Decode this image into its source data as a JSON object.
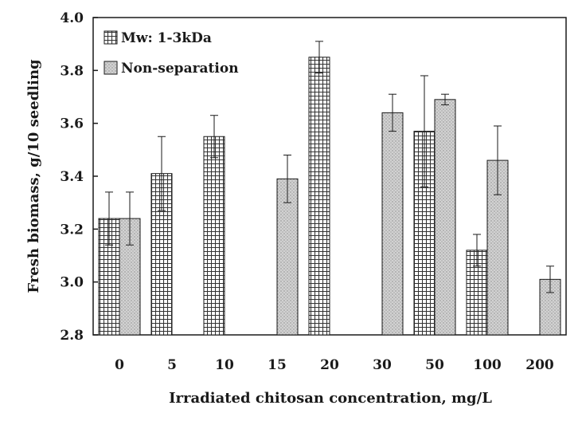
{
  "chart_data": {
    "type": "bar",
    "xlabel": "Irradiated chitosan concentration, mg/L",
    "ylabel": "Fresh biomass, g/10 seedling",
    "ylim": [
      2.8,
      4.0
    ],
    "yticks": [
      "2.8",
      "3.0",
      "3.2",
      "3.4",
      "3.6",
      "3.8",
      "4.0"
    ],
    "categories": [
      "0",
      "5",
      "10",
      "15",
      "20",
      "30",
      "50",
      "100",
      "200"
    ],
    "legend_position": "top-left",
    "grid": false,
    "series": [
      {
        "name": "Mw: 1-3kDa",
        "pattern": "cross-hatch",
        "values": [
          3.24,
          3.41,
          3.55,
          null,
          3.85,
          null,
          3.57,
          3.12,
          null
        ],
        "errors": [
          0.1,
          0.14,
          0.08,
          null,
          0.06,
          null,
          0.21,
          0.06,
          null
        ]
      },
      {
        "name": "Non-separation",
        "pattern": "stipple",
        "values": [
          3.24,
          null,
          null,
          3.39,
          null,
          3.64,
          3.69,
          3.46,
          3.01
        ],
        "errors": [
          0.1,
          null,
          null,
          0.09,
          null,
          0.07,
          0.02,
          0.13,
          0.05
        ]
      }
    ],
    "colors": {
      "axis": "#1a1a1a",
      "bar_outline": "#1a1a1a",
      "hatch": "#333333",
      "stipple_fill": "#c8c8c8"
    }
  }
}
